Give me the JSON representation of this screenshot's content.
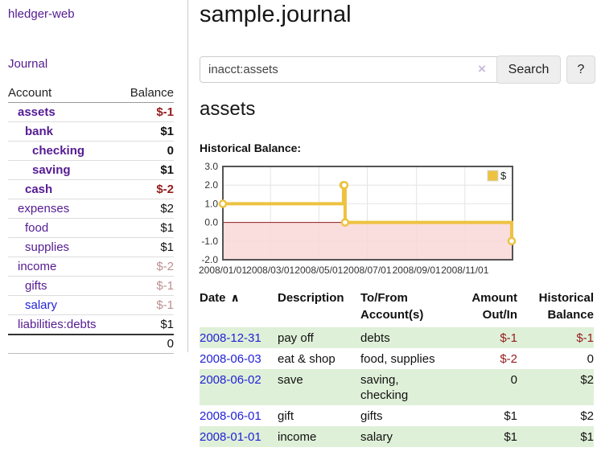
{
  "app": {
    "brand": "hledger-web"
  },
  "nav": {
    "journal": "Journal"
  },
  "sidebar": {
    "columns": {
      "account": "Account",
      "balance": "Balance"
    },
    "rows": [
      {
        "label": "assets",
        "balance": "$-1"
      },
      {
        "label": "bank",
        "balance": "$1"
      },
      {
        "label": "checking",
        "balance": "0"
      },
      {
        "label": "saving",
        "balance": "$1"
      },
      {
        "label": "cash",
        "balance": "$-2"
      },
      {
        "label": "expenses",
        "balance": "$2"
      },
      {
        "label": "food",
        "balance": "$1"
      },
      {
        "label": "supplies",
        "balance": "$1"
      },
      {
        "label": "income",
        "balance": "$-2"
      },
      {
        "label": "gifts",
        "balance": "$-1"
      },
      {
        "label": "salary",
        "balance": "$-1"
      },
      {
        "label": "liabilities:debts",
        "balance": "$1"
      }
    ],
    "total": "0"
  },
  "header": {
    "title": "sample.journal"
  },
  "search": {
    "value": "inacct:assets",
    "clear_icon": "×",
    "search_button": "Search",
    "help_button": "?"
  },
  "account_page": {
    "heading": "assets",
    "chart_title": "Historical Balance:"
  },
  "chart_data": {
    "type": "line",
    "style": "step",
    "title": "Historical Balance:",
    "series": [
      {
        "name": "$",
        "color": "#EDC240",
        "points": [
          {
            "date": "2008-01-01",
            "value": 1
          },
          {
            "date": "2008-06-01",
            "value": 2
          },
          {
            "date": "2008-06-02",
            "value": 2
          },
          {
            "date": "2008-06-03",
            "value": 0
          },
          {
            "date": "2008-12-31",
            "value": -1
          }
        ]
      }
    ],
    "x_ticks": [
      "2008/01/01",
      "2008/03/01",
      "2008/05/01",
      "2008/07/01",
      "2008/09/01",
      "2008/11/01"
    ],
    "y_ticks": [
      "3.0",
      "2.0",
      "1.0",
      "0.0",
      "-1.0",
      "-2.0"
    ],
    "ylim": [
      -2,
      3
    ],
    "xlim": [
      "2008-01-01",
      "2008-12-31"
    ],
    "legend": {
      "label": "$",
      "position": "top-right"
    },
    "grid": true,
    "negative_region": true,
    "colors": {
      "line": "#EDC240",
      "negative_fill": "#f9d7d7",
      "zero_line": "#8b1a1a",
      "grid": "#e4e4e4",
      "border": "#545454"
    }
  },
  "register": {
    "columns": {
      "date": "Date",
      "description": "Description",
      "accounts": "To/From Account(s)",
      "amount": "Amount Out/In",
      "balance": "Historical Balance"
    },
    "sort_icon": "∧",
    "rows": [
      {
        "date": "2008-12-31",
        "description": "pay off",
        "accounts": "debts",
        "amount": "$-1",
        "balance": "$-1"
      },
      {
        "date": "2008-06-03",
        "description": "eat & shop",
        "accounts": "food, supplies",
        "amount": "$-2",
        "balance": "0"
      },
      {
        "date": "2008-06-02",
        "description": "save",
        "accounts": "saving, checking",
        "amount": "0",
        "balance": "$2"
      },
      {
        "date": "2008-06-01",
        "description": "gift",
        "accounts": "gifts",
        "amount": "$1",
        "balance": "$2"
      },
      {
        "date": "2008-01-01",
        "description": "income",
        "accounts": "salary",
        "amount": "$1",
        "balance": "$1"
      }
    ]
  }
}
